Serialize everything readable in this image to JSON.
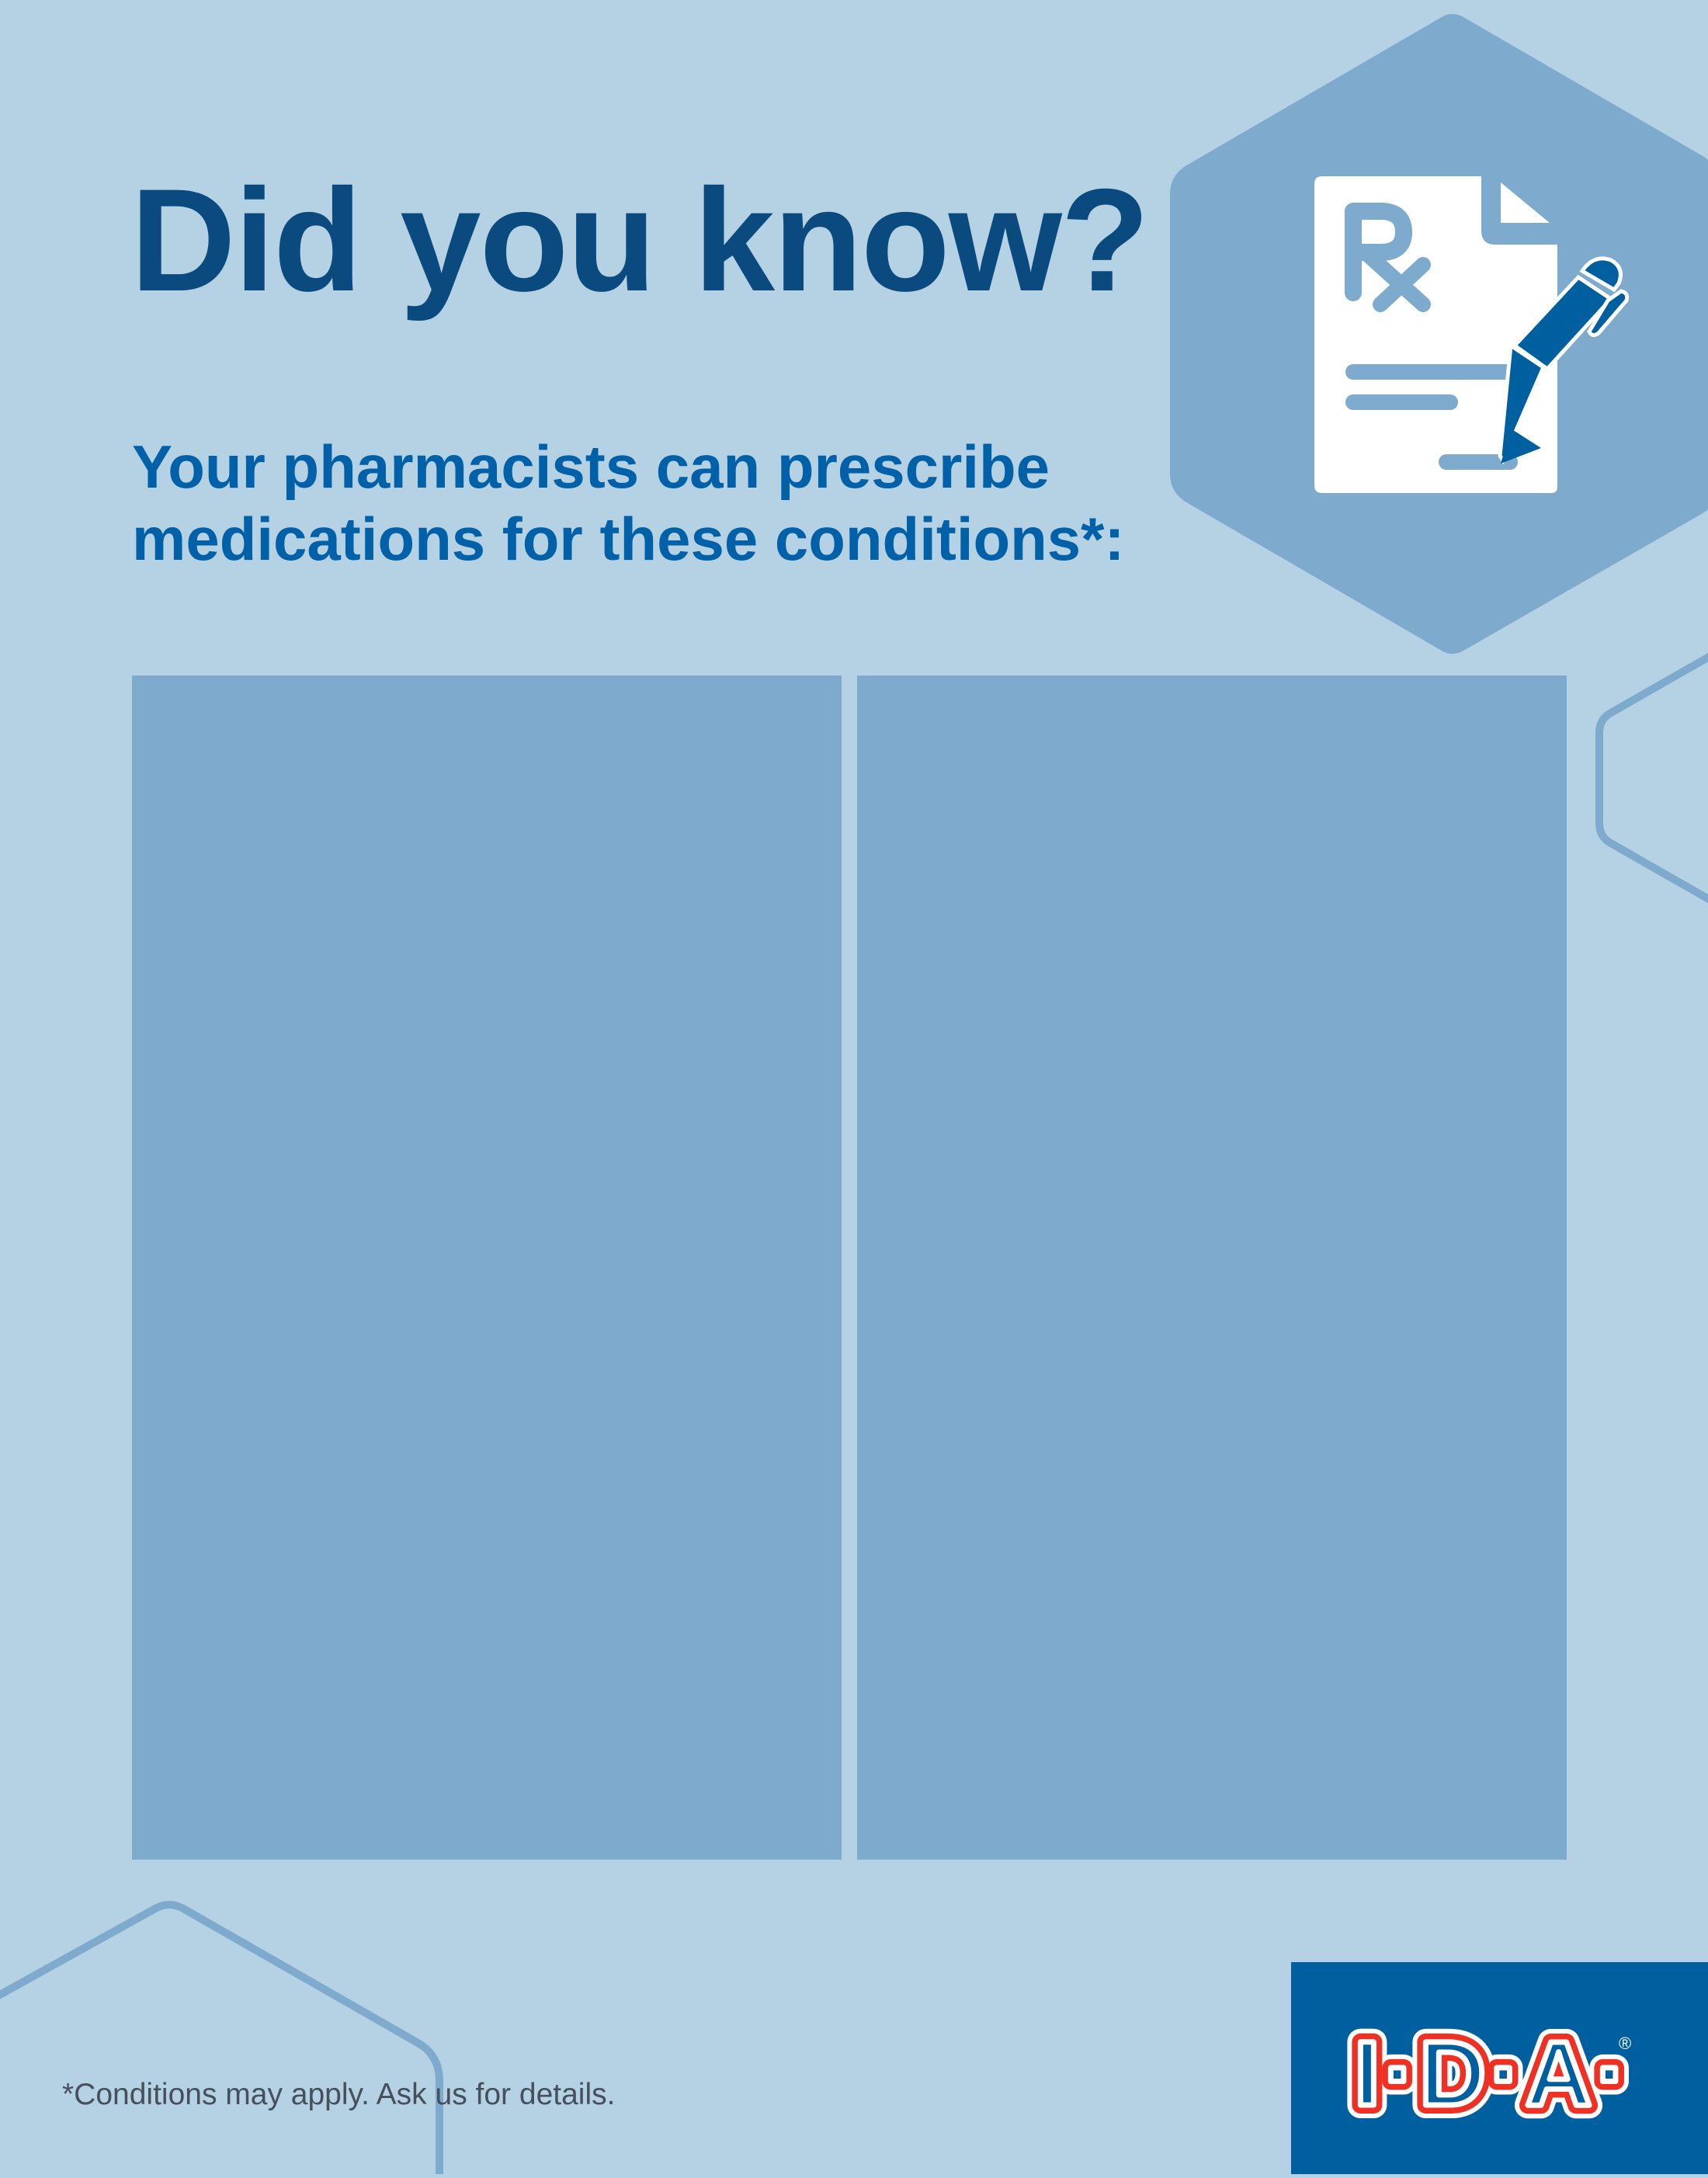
{
  "header": {
    "title": "Did you know?",
    "subtitle_line1": "Your pharmacists can prescribe",
    "subtitle_line2": "medications for these conditions*:"
  },
  "panels": [
    {
      "content": ""
    },
    {
      "content": ""
    }
  ],
  "footer": {
    "footnote": "*Conditions may apply. Ask us for details."
  },
  "logo": {
    "text": "I·D·A",
    "registered": "®"
  },
  "icons": {
    "hero": "prescription-document-with-pen-icon"
  },
  "colors": {
    "background": "#b5d1e4",
    "panel": "#7daacd",
    "title": "#0b4a7e",
    "subtitle": "#0060a8",
    "logo_box": "#005f9f",
    "logo_red": "#ee3124"
  }
}
